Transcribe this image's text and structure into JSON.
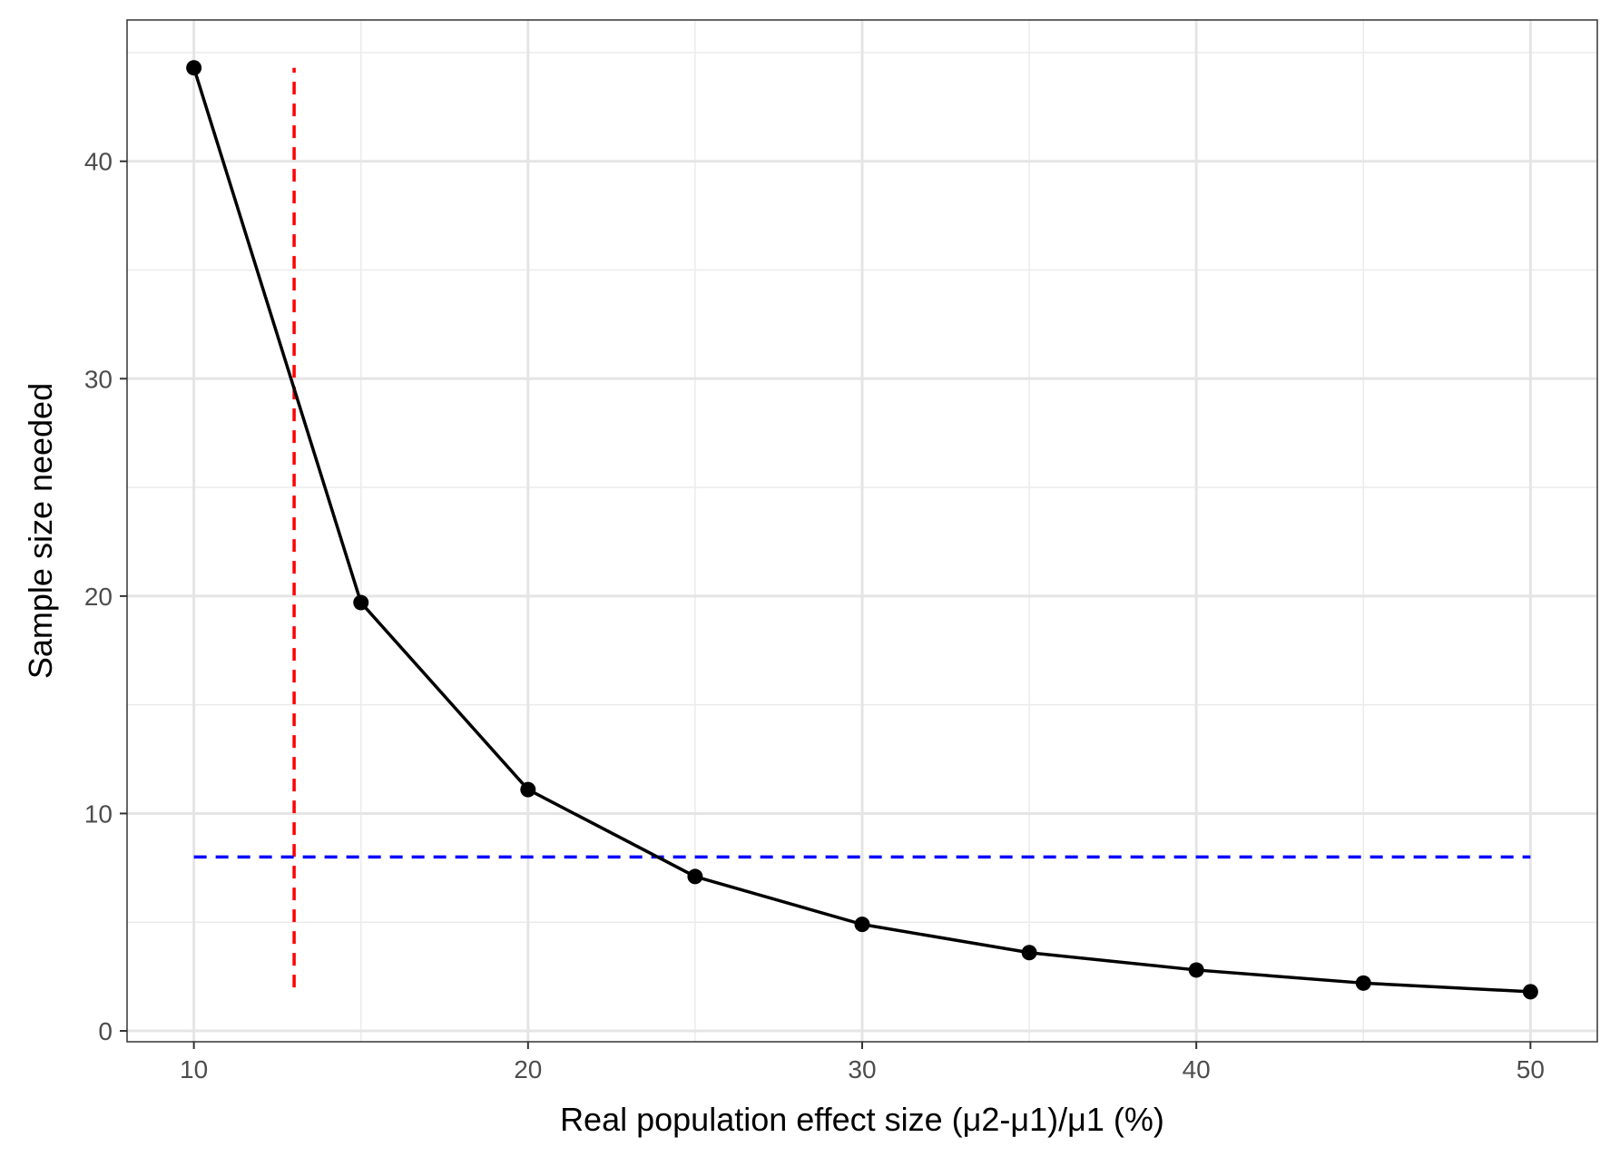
{
  "chart_data": {
    "type": "line",
    "title": "",
    "xlabel": "Real population effect size (μ2-μ1)/μ1 (%)",
    "ylabel": "Sample size needed",
    "xlim": [
      8,
      52
    ],
    "ylim": [
      -0.5,
      46.5
    ],
    "x_ticks": [
      10,
      20,
      30,
      40,
      50
    ],
    "x_tick_labels": [
      "10",
      "20",
      "30",
      "40",
      "50"
    ],
    "x_minor_ticks": [
      15,
      25,
      35,
      45
    ],
    "y_ticks": [
      0,
      10,
      20,
      30,
      40
    ],
    "y_tick_labels": [
      "0",
      "10",
      "20",
      "30",
      "40"
    ],
    "y_minor_ticks": [
      5,
      15,
      25,
      35,
      45
    ],
    "grid": true,
    "legend": "none",
    "series": [
      {
        "x": [
          10,
          15,
          20,
          25,
          30,
          35,
          40,
          45,
          50
        ],
        "values": [
          44.3,
          19.7,
          11.1,
          7.1,
          4.9,
          3.6,
          2.8,
          2.2,
          1.8
        ],
        "color": "#000000",
        "markers": true
      }
    ],
    "reference_lines": [
      {
        "orientation": "vertical",
        "x": 13,
        "y_from": 2,
        "y_to": 44.3,
        "color": "#ff0000",
        "style": "dashed"
      },
      {
        "orientation": "horizontal",
        "y": 8,
        "x_from": 10,
        "x_to": 50,
        "color": "#0000ff",
        "style": "dashed"
      }
    ]
  }
}
